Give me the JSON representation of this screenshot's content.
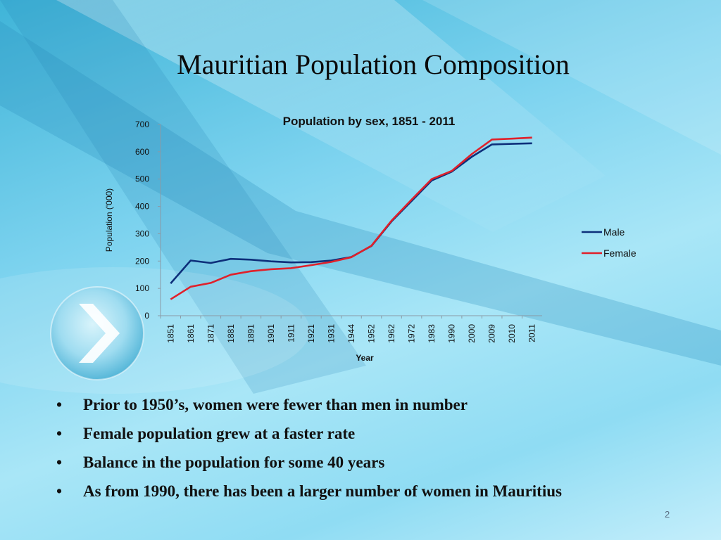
{
  "slide": {
    "title": "Mauritian Population Composition",
    "page_number": "2",
    "bullets": [
      "Prior to 1950’s,  women were fewer than men in number",
      "Female population grew at a faster rate",
      "Balance in the population for some 40 years",
      "As from 1990, there has been a larger number of women in Mauritius"
    ],
    "bullet_glyph": "•"
  },
  "chart_data": {
    "type": "line",
    "title": "Population by sex, 1851 - 2011",
    "xlabel": "Year",
    "ylabel": "Population ('000)",
    "categories": [
      "1851",
      "1861",
      "1871",
      "1881",
      "1891",
      "1901",
      "1911",
      "1921",
      "1931",
      "1944",
      "1952",
      "1962",
      "1972",
      "1983",
      "1990",
      "2000",
      "2009",
      "2010",
      "2011"
    ],
    "ylim": [
      0,
      700
    ],
    "yticks": [
      0,
      100,
      200,
      300,
      400,
      500,
      600,
      700
    ],
    "grid": false,
    "legend_position": "right",
    "series": [
      {
        "name": "Male",
        "color": "#0d2f7a",
        "values": [
          118,
          202,
          193,
          208,
          205,
          199,
          195,
          196,
          202,
          215,
          255,
          345,
          420,
          495,
          527,
          582,
          627,
          629,
          631
        ]
      },
      {
        "name": "Female",
        "color": "#e0202a",
        "values": [
          60,
          106,
          120,
          150,
          163,
          170,
          174,
          185,
          197,
          214,
          256,
          348,
          425,
          500,
          530,
          592,
          645,
          648,
          652
        ]
      }
    ]
  }
}
